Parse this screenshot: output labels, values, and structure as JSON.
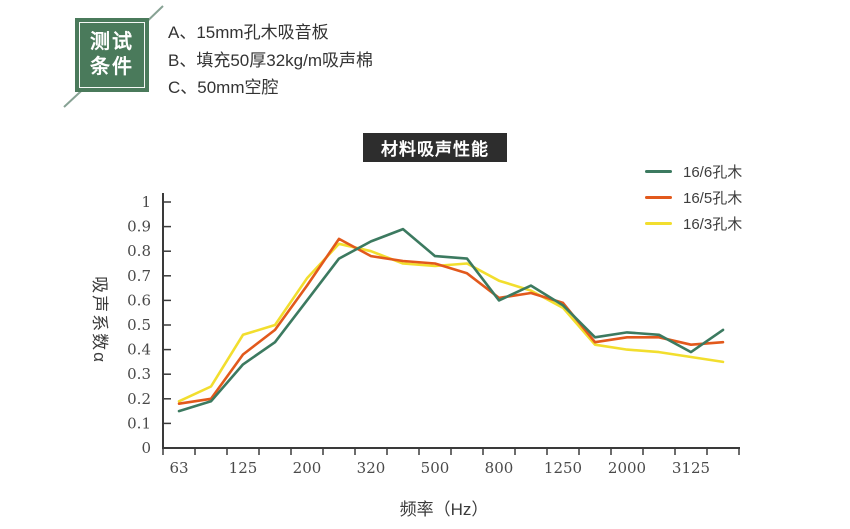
{
  "test_conditions": {
    "badge_line1": "测试",
    "badge_line2": "条件",
    "badge_color": "#4a7a5b",
    "items": [
      "A、15mm孔木吸音板",
      "B、填充50厚32kg/m吸声棉",
      "C、50mm空腔"
    ]
  },
  "chart_title": "材料吸声性能",
  "chart_data": {
    "type": "line",
    "title": "材料吸声性能",
    "xlabel": "频率（Hz）",
    "ylabel": "吸声系数α",
    "x_ticklabels": [
      "63",
      "125",
      "200",
      "320",
      "500",
      "800",
      "1250",
      "2000",
      "3125"
    ],
    "x_points": 18,
    "ylim": [
      0,
      1
    ],
    "y_ticklabels": [
      "0",
      "0.1",
      "0.2",
      "0.3",
      "0.4",
      "0.5",
      "0.6",
      "0.7",
      "0.8",
      "0.9",
      "1"
    ],
    "grid": false,
    "legend_position": "top-right",
    "axis_color": "#3a3a3a",
    "series": [
      {
        "name": "16/6孔木",
        "color": "#3c7a60",
        "values": [
          0.15,
          0.19,
          0.34,
          0.43,
          0.6,
          0.77,
          0.84,
          0.89,
          0.78,
          0.77,
          0.6,
          0.66,
          0.58,
          0.45,
          0.47,
          0.46,
          0.39,
          0.48
        ]
      },
      {
        "name": "16/5孔木",
        "color": "#e2591c",
        "values": [
          0.18,
          0.2,
          0.38,
          0.48,
          0.66,
          0.85,
          0.78,
          0.76,
          0.75,
          0.71,
          0.61,
          0.63,
          0.59,
          0.43,
          0.45,
          0.45,
          0.42,
          0.43
        ]
      },
      {
        "name": "16/3孔木",
        "color": "#f2de2e",
        "values": [
          0.19,
          0.25,
          0.46,
          0.5,
          0.69,
          0.83,
          0.8,
          0.75,
          0.74,
          0.75,
          0.68,
          0.64,
          0.57,
          0.42,
          0.4,
          0.39,
          0.37,
          0.35
        ]
      }
    ]
  }
}
